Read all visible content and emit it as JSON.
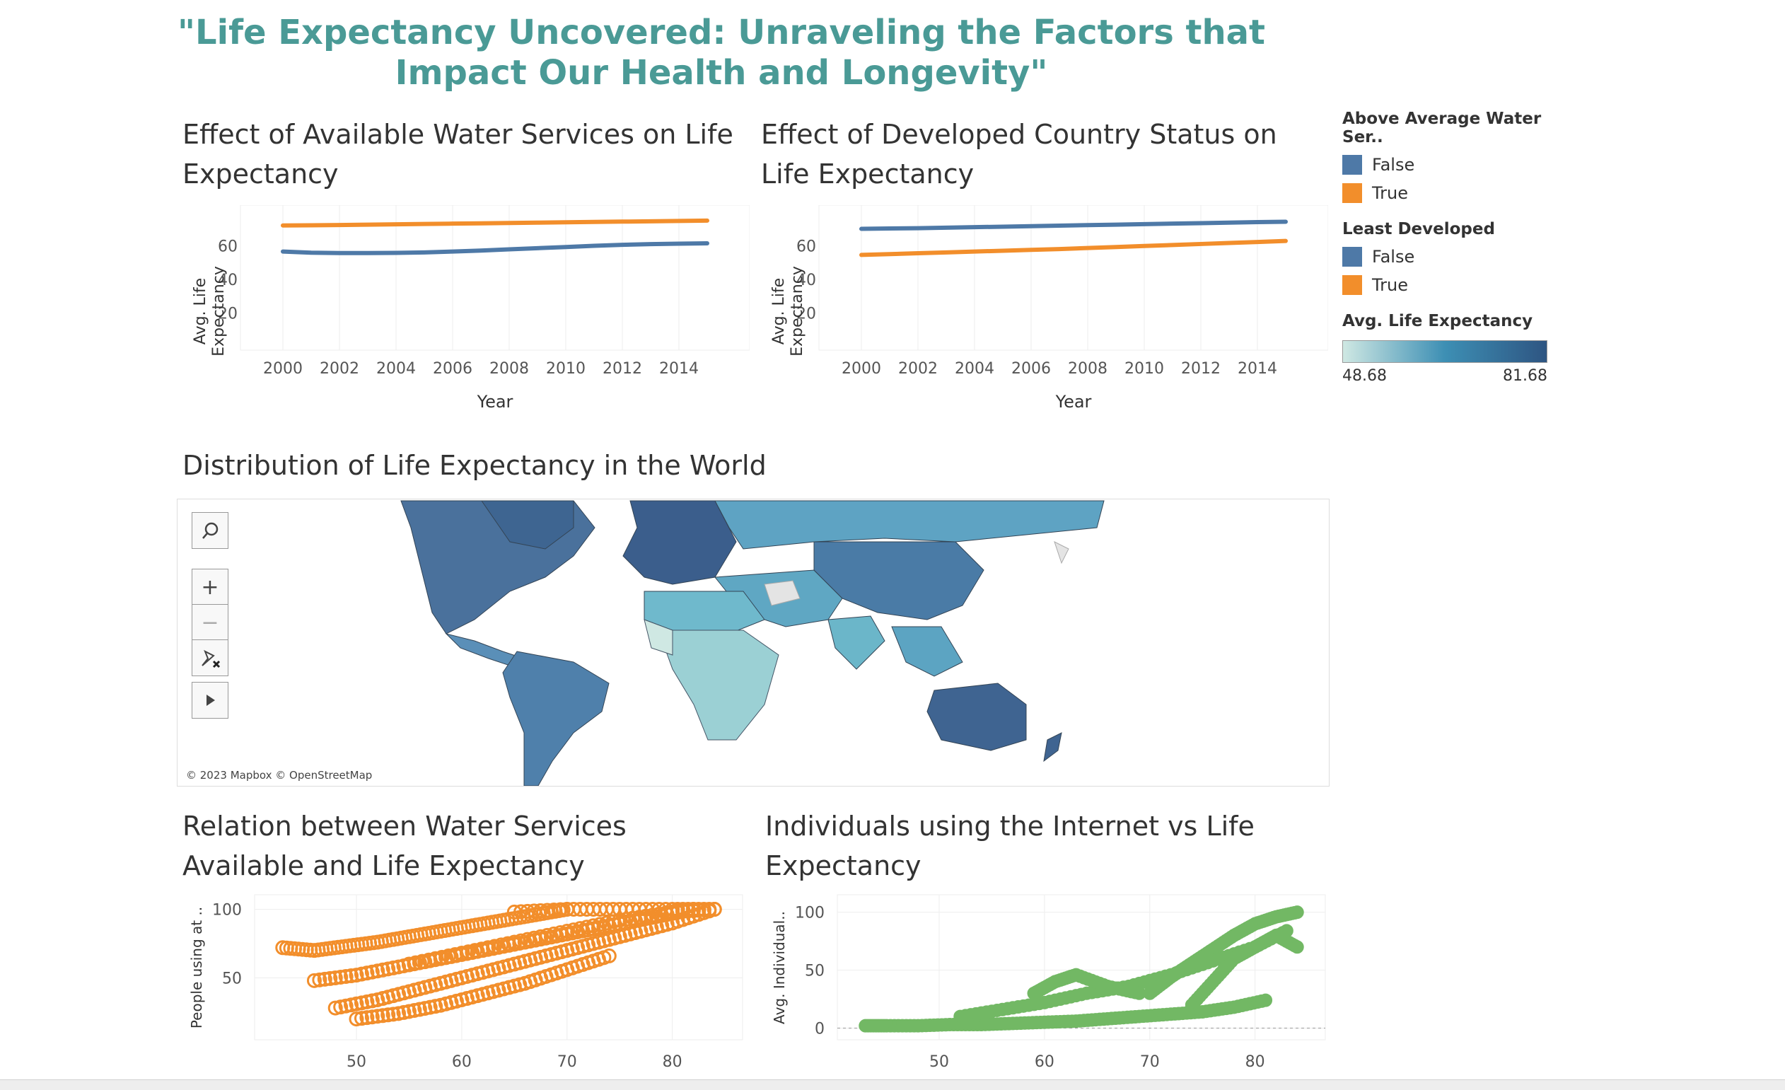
{
  "dashboard": {
    "title": "\"Life Expectancy Uncovered: Unraveling the Factors that Impact Our Health and Longevity\""
  },
  "legends": {
    "water": {
      "title": "Above Average Water Ser..",
      "items": [
        {
          "label": "False",
          "color": "#4e79a7"
        },
        {
          "label": "True",
          "color": "#f28e2b"
        }
      ]
    },
    "developed": {
      "title": "Least Developed",
      "items": [
        {
          "label": "False",
          "color": "#4e79a7"
        },
        {
          "label": "True",
          "color": "#f28e2b"
        }
      ]
    },
    "gradient": {
      "title": "Avg. Life Expectancy",
      "min_label": "48.68",
      "max_label": "81.68",
      "color_low": "#cfe8e3",
      "color_mid": "#3d8fb4",
      "color_high": "#2e5582"
    }
  },
  "map": {
    "title": "Distribution of Life Expectancy in the World",
    "attribution": "© 2023 Mapbox © OpenStreetMap",
    "controls": {
      "search": "search-icon",
      "zoom_in": "+",
      "zoom_out": "−",
      "pin": "pin-icon",
      "play": "play-icon"
    }
  },
  "chart_data": [
    {
      "id": "water_line",
      "type": "line",
      "title": "Effect of Available Water Services on Life Expectancy",
      "xlabel": "Year",
      "ylabel": "Avg. Life Expectancy",
      "x": [
        2000,
        2001,
        2002,
        2003,
        2004,
        2005,
        2006,
        2007,
        2008,
        2009,
        2010,
        2011,
        2012,
        2013,
        2014,
        2015
      ],
      "xticks": [
        "2000",
        "2002",
        "2004",
        "2006",
        "2008",
        "2010",
        "2012",
        "2014"
      ],
      "yticks": [
        "20",
        "40",
        "60"
      ],
      "xlim": [
        1999,
        2016
      ],
      "ylim": [
        0,
        82
      ],
      "series": [
        {
          "name": "True",
          "color": "#f28e2b",
          "values": [
            72.0,
            72.1,
            72.3,
            72.5,
            72.7,
            72.9,
            73.1,
            73.3,
            73.5,
            73.7,
            73.9,
            74.1,
            74.3,
            74.5,
            74.7,
            74.9
          ]
        },
        {
          "name": "False",
          "color": "#4e79a7",
          "values": [
            56.5,
            55.8,
            55.6,
            55.6,
            55.7,
            56.0,
            56.5,
            57.1,
            57.8,
            58.5,
            59.2,
            59.9,
            60.5,
            60.9,
            61.2,
            61.4
          ]
        }
      ],
      "grid": true
    },
    {
      "id": "developed_line",
      "type": "line",
      "title": "Effect of Developed Country Status on Life Expectancy",
      "xlabel": "Year",
      "ylabel": "Avg. Life Expectancy",
      "x": [
        2000,
        2001,
        2002,
        2003,
        2004,
        2005,
        2006,
        2007,
        2008,
        2009,
        2010,
        2011,
        2012,
        2013,
        2014,
        2015
      ],
      "xticks": [
        "2000",
        "2002",
        "2004",
        "2006",
        "2008",
        "2010",
        "2012",
        "2014"
      ],
      "yticks": [
        "20",
        "40",
        "60"
      ],
      "xlim": [
        1999,
        2016
      ],
      "ylim": [
        0,
        82
      ],
      "series": [
        {
          "name": "False",
          "color": "#4e79a7",
          "values": [
            70.0,
            70.2,
            70.4,
            70.7,
            71.0,
            71.3,
            71.6,
            71.9,
            72.2,
            72.5,
            72.8,
            73.1,
            73.4,
            73.7,
            74.0,
            74.2
          ]
        },
        {
          "name": "True",
          "color": "#f28e2b",
          "values": [
            54.5,
            55.0,
            55.5,
            56.0,
            56.5,
            57.0,
            57.5,
            58.0,
            58.6,
            59.2,
            59.8,
            60.4,
            61.0,
            61.6,
            62.2,
            62.8
          ]
        }
      ],
      "grid": true
    },
    {
      "id": "water_scatter",
      "type": "scatter",
      "title": "Relation between Water Services Available and Life Expectancy",
      "xlabel": "",
      "ylabel": "People using at ..",
      "xticks": [
        "50",
        "60",
        "70",
        "80"
      ],
      "yticks": [
        "50",
        "100"
      ],
      "xlim": [
        41,
        86
      ],
      "ylim": [
        10,
        108
      ],
      "marker": "hollow-circle",
      "color": "#f28e2b",
      "clusters": [
        {
          "x": [
            43,
            46,
            49,
            52,
            55,
            58,
            61,
            64,
            67,
            70
          ],
          "y": [
            72,
            70,
            73,
            76,
            80,
            84,
            88,
            92,
            96,
            100
          ]
        },
        {
          "x": [
            46,
            50,
            54,
            58,
            62,
            66,
            70,
            74,
            78,
            82
          ],
          "y": [
            48,
            52,
            58,
            64,
            70,
            76,
            82,
            88,
            94,
            100
          ]
        },
        {
          "x": [
            48,
            52,
            56,
            60,
            64,
            68,
            72,
            76,
            80,
            84
          ],
          "y": [
            28,
            34,
            42,
            50,
            58,
            66,
            74,
            82,
            90,
            100
          ]
        },
        {
          "x": [
            50,
            54,
            58,
            62,
            66,
            70,
            74
          ],
          "y": [
            20,
            24,
            30,
            38,
            46,
            56,
            66
          ]
        },
        {
          "x": [
            55,
            60,
            65,
            70,
            75,
            80,
            84
          ],
          "y": [
            60,
            68,
            76,
            84,
            92,
            98,
            100
          ]
        },
        {
          "x": [
            65,
            70,
            75,
            80,
            84
          ],
          "y": [
            98,
            100,
            100,
            100,
            100
          ]
        }
      ]
    },
    {
      "id": "internet_scatter",
      "type": "scatter",
      "title": "Individuals using the Internet vs Life Expectancy",
      "xlabel": "",
      "ylabel": "Avg. Individual..",
      "xticks": [
        "50",
        "60",
        "70",
        "80"
      ],
      "yticks": [
        "0",
        "50",
        "100"
      ],
      "xlim": [
        41,
        86
      ],
      "ylim": [
        -4,
        112
      ],
      "marker": "filled-circle",
      "color": "#72b864",
      "clusters": [
        {
          "x": [
            43,
            45,
            48,
            51,
            54,
            57,
            60,
            63,
            66,
            69,
            72,
            75,
            78,
            81
          ],
          "y": [
            2,
            2,
            2,
            3,
            3,
            4,
            5,
            6,
            8,
            10,
            12,
            14,
            18,
            24
          ]
        },
        {
          "x": [
            52,
            56,
            60,
            64,
            68,
            72,
            76,
            80,
            83
          ],
          "y": [
            10,
            16,
            22,
            30,
            36,
            46,
            58,
            70,
            84
          ]
        },
        {
          "x": [
            70,
            72,
            74,
            76,
            78,
            80,
            82,
            84
          ],
          "y": [
            30,
            44,
            56,
            68,
            80,
            90,
            96,
            100
          ]
        },
        {
          "x": [
            59,
            61,
            63,
            66,
            69
          ],
          "y": [
            30,
            40,
            46,
            36,
            30
          ]
        },
        {
          "x": [
            74,
            76,
            78,
            80,
            82,
            84
          ],
          "y": [
            20,
            40,
            60,
            70,
            80,
            70
          ]
        }
      ]
    }
  ]
}
